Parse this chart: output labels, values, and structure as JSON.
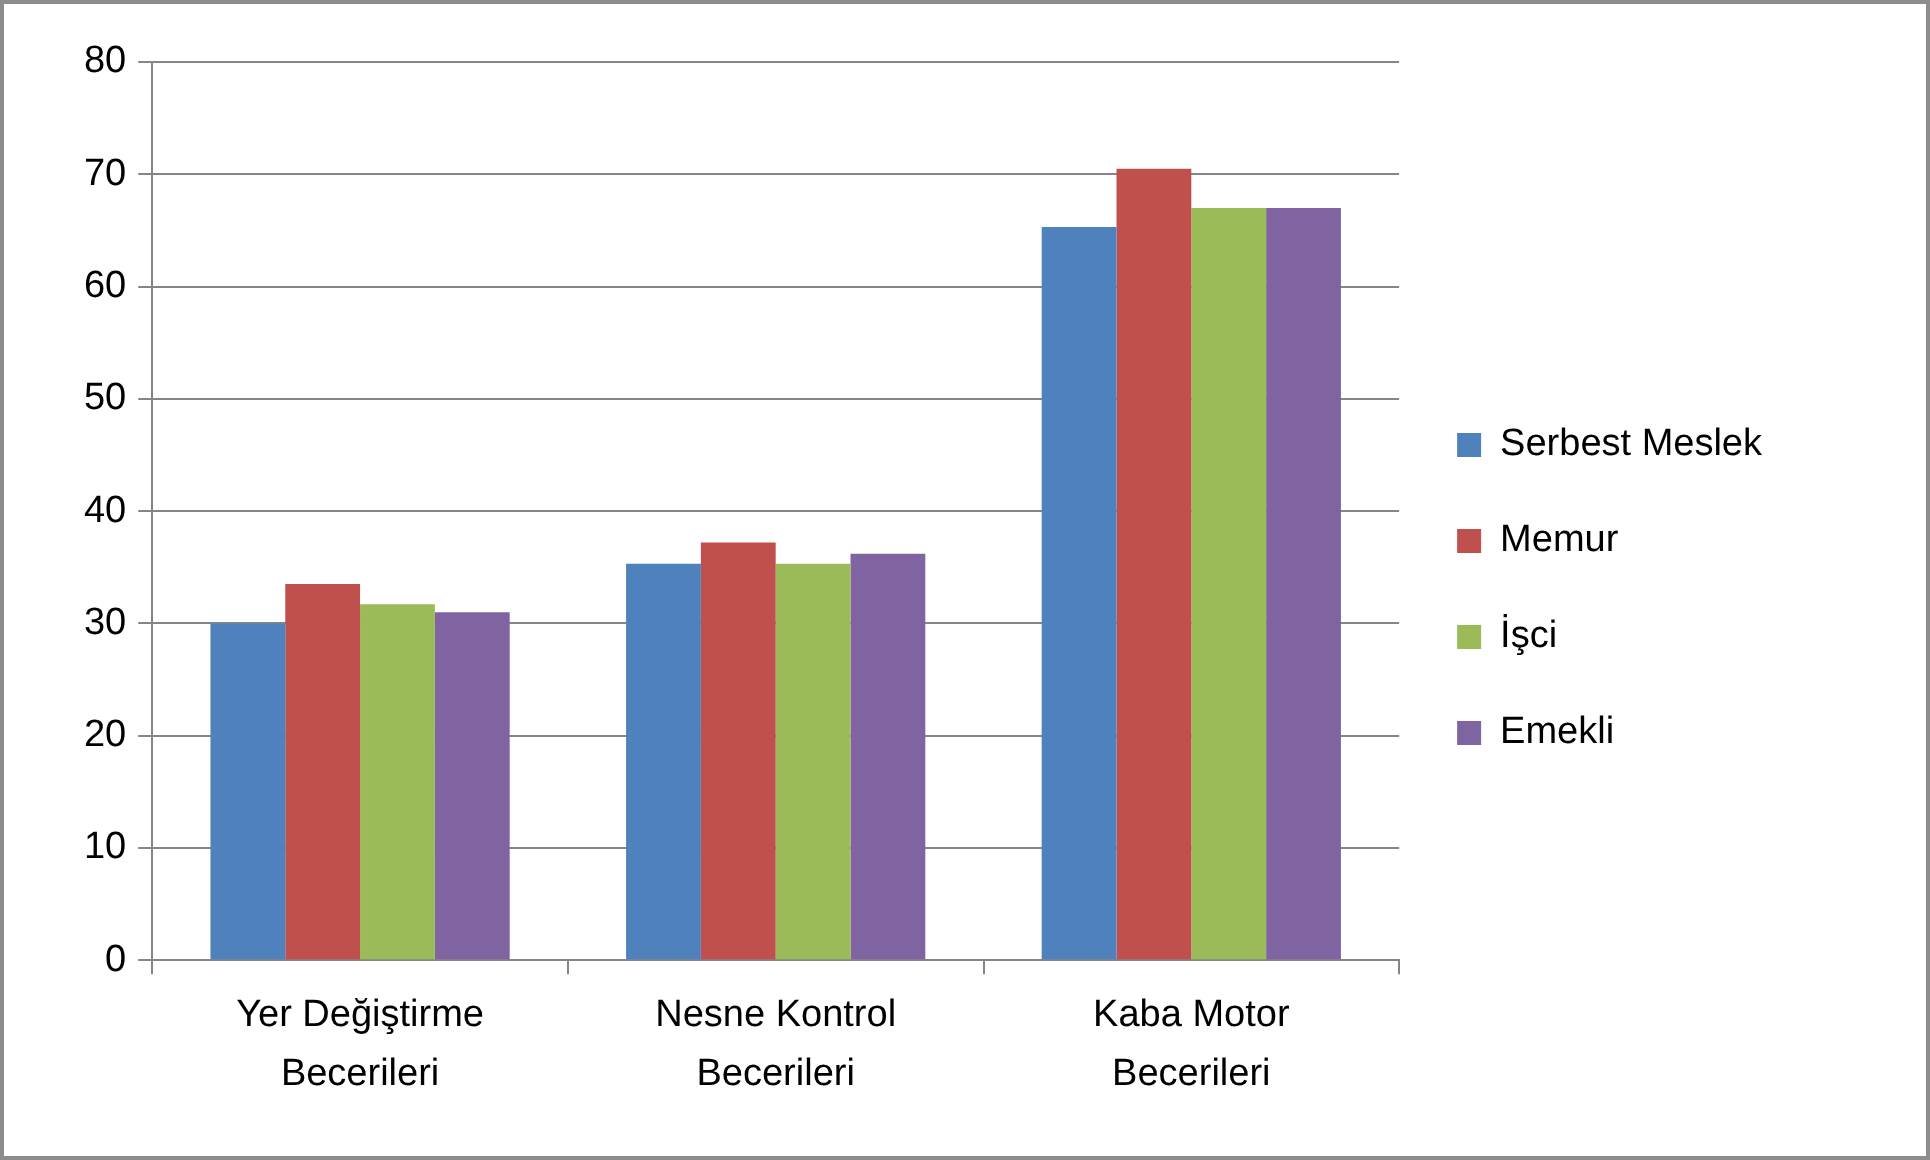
{
  "chart_data": {
    "type": "bar",
    "categories": [
      "Yer Değiştirme Becerileri",
      "Nesne Kontrol Becerileri",
      "Kaba Motor Becerileri"
    ],
    "series": [
      {
        "name": "Serbest Meslek",
        "color": "#4f81bd",
        "values": [
          30,
          35.3,
          65.3
        ]
      },
      {
        "name": "Memur",
        "color": "#c0504d",
        "values": [
          33.5,
          37.2,
          70.5
        ]
      },
      {
        "name": "İşci",
        "color": "#9bbb59",
        "values": [
          31.7,
          35.3,
          67
        ]
      },
      {
        "name": "Emekli",
        "color": "#8064a2",
        "values": [
          31,
          36.2,
          67
        ]
      }
    ],
    "ylim": [
      0,
      80
    ],
    "yticks": [
      0,
      10,
      20,
      30,
      40,
      50,
      60,
      70,
      80
    ],
    "grid": "y",
    "legend": "right"
  }
}
